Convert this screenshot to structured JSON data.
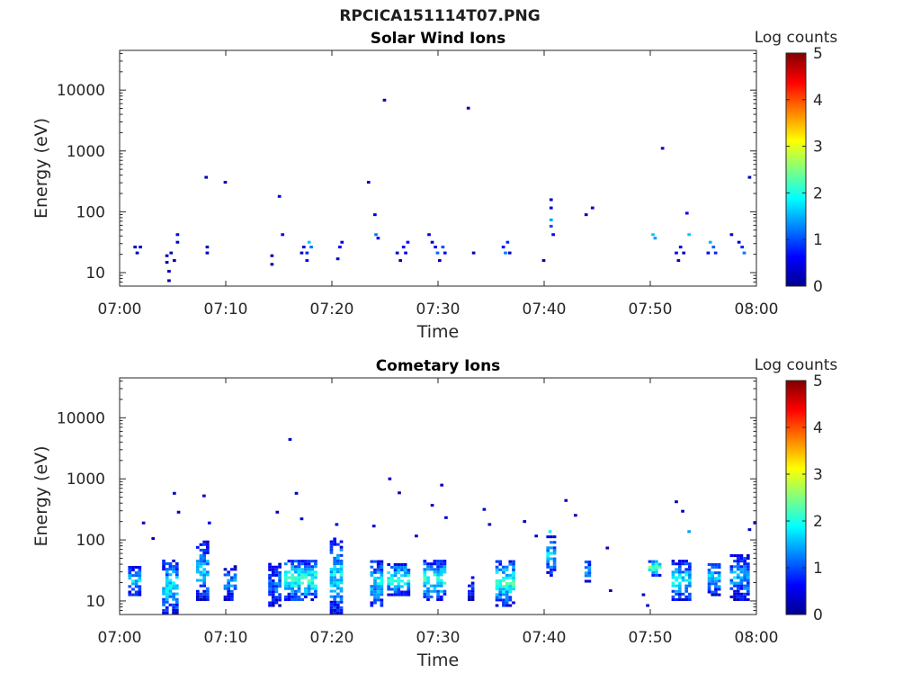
{
  "figure": {
    "title": "RPCICA151114T07.PNG",
    "colorbar_label": "Log counts"
  },
  "colormap": {
    "name": "jet",
    "range": [
      0,
      5
    ],
    "stops": [
      "#00008f",
      "#0000ff",
      "#0080ff",
      "#00ffff",
      "#80ff80",
      "#ffff00",
      "#ff8000",
      "#ff0000",
      "#800000"
    ]
  },
  "chart_data": [
    {
      "type": "heatmap",
      "title": "Solar Wind Ions",
      "xlabel": "Time",
      "ylabel": "Energy (eV)",
      "xlim": [
        "07:00",
        "08:00"
      ],
      "ylim": [
        6,
        45000
      ],
      "yscale": "log",
      "xticks": [
        "07:00",
        "07:10",
        "07:20",
        "07:30",
        "07:40",
        "07:50",
        "08:00"
      ],
      "yticks": [
        "10",
        "100",
        "1000",
        "10000"
      ],
      "colorbar": {
        "label": "Log counts",
        "ticks": [
          "0",
          "1",
          "2",
          "3",
          "4",
          "5"
        ]
      },
      "cells": [
        {
          "t": 1.3,
          "e": 25,
          "v": 0.3
        },
        {
          "t": 1.5,
          "e": 20,
          "v": 0.2
        },
        {
          "t": 1.8,
          "e": 25,
          "v": 0.3
        },
        {
          "t": 4.3,
          "e": 18,
          "v": 0.2
        },
        {
          "t": 4.3,
          "e": 14,
          "v": 0.1
        },
        {
          "t": 4.5,
          "e": 10,
          "v": 0.1
        },
        {
          "t": 4.5,
          "e": 7,
          "v": 0.1
        },
        {
          "t": 4.7,
          "e": 20,
          "v": 0.2
        },
        {
          "t": 5.0,
          "e": 15,
          "v": 0.2
        },
        {
          "t": 5.3,
          "e": 40,
          "v": 0.4
        },
        {
          "t": 5.3,
          "e": 30,
          "v": 0.3
        },
        {
          "t": 8.0,
          "e": 350,
          "v": 0.2
        },
        {
          "t": 8.1,
          "e": 25,
          "v": 0.3
        },
        {
          "t": 8.1,
          "e": 20,
          "v": 0.2
        },
        {
          "t": 9.8,
          "e": 290,
          "v": 0.2
        },
        {
          "t": 14.2,
          "e": 18,
          "v": 0.2
        },
        {
          "t": 14.2,
          "e": 13,
          "v": 0.2
        },
        {
          "t": 14.9,
          "e": 170,
          "v": 0.4
        },
        {
          "t": 15.2,
          "e": 40,
          "v": 0.6
        },
        {
          "t": 17.0,
          "e": 20,
          "v": 0.2
        },
        {
          "t": 17.2,
          "e": 25,
          "v": 0.5
        },
        {
          "t": 17.5,
          "e": 20,
          "v": 0.8
        },
        {
          "t": 17.7,
          "e": 30,
          "v": 1.6
        },
        {
          "t": 17.9,
          "e": 25,
          "v": 1.2
        },
        {
          "t": 17.5,
          "e": 15,
          "v": 0.6
        },
        {
          "t": 20.4,
          "e": 16,
          "v": 0.3
        },
        {
          "t": 20.6,
          "e": 25,
          "v": 0.5
        },
        {
          "t": 20.8,
          "e": 30,
          "v": 0.4
        },
        {
          "t": 23.3,
          "e": 290,
          "v": 0.2
        },
        {
          "t": 23.9,
          "e": 85,
          "v": 0.5
        },
        {
          "t": 24.0,
          "e": 40,
          "v": 1.2
        },
        {
          "t": 24.2,
          "e": 35,
          "v": 0.5
        },
        {
          "t": 24.8,
          "e": 6500,
          "v": 0.2
        },
        {
          "t": 26.0,
          "e": 20,
          "v": 0.3
        },
        {
          "t": 26.3,
          "e": 15,
          "v": 0.3
        },
        {
          "t": 26.6,
          "e": 25,
          "v": 0.6
        },
        {
          "t": 26.8,
          "e": 20,
          "v": 0.4
        },
        {
          "t": 27.0,
          "e": 30,
          "v": 0.6
        },
        {
          "t": 29.0,
          "e": 40,
          "v": 0.4
        },
        {
          "t": 29.3,
          "e": 30,
          "v": 0.3
        },
        {
          "t": 29.6,
          "e": 25,
          "v": 0.5
        },
        {
          "t": 29.8,
          "e": 20,
          "v": 1.1
        },
        {
          "t": 30.0,
          "e": 15,
          "v": 0.2
        },
        {
          "t": 30.3,
          "e": 25,
          "v": 1.0
        },
        {
          "t": 30.5,
          "e": 20,
          "v": 0.6
        },
        {
          "t": 32.7,
          "e": 4800,
          "v": 0.2
        },
        {
          "t": 33.2,
          "e": 20,
          "v": 0.2
        },
        {
          "t": 36.0,
          "e": 25,
          "v": 0.6
        },
        {
          "t": 36.2,
          "e": 20,
          "v": 1.2
        },
        {
          "t": 36.4,
          "e": 30,
          "v": 0.8
        },
        {
          "t": 36.6,
          "e": 20,
          "v": 0.3
        },
        {
          "t": 39.8,
          "e": 15,
          "v": 0.2
        },
        {
          "t": 40.5,
          "e": 150,
          "v": 0.3
        },
        {
          "t": 40.5,
          "e": 110,
          "v": 0.4
        },
        {
          "t": 40.5,
          "e": 70,
          "v": 1.4
        },
        {
          "t": 40.5,
          "e": 55,
          "v": 1.0
        },
        {
          "t": 40.7,
          "e": 40,
          "v": 0.6
        },
        {
          "t": 43.8,
          "e": 85,
          "v": 0.3
        },
        {
          "t": 44.4,
          "e": 110,
          "v": 0.3
        },
        {
          "t": 50.1,
          "e": 40,
          "v": 1.6
        },
        {
          "t": 50.3,
          "e": 35,
          "v": 1.4
        },
        {
          "t": 51.0,
          "e": 1050,
          "v": 0.3
        },
        {
          "t": 52.3,
          "e": 20,
          "v": 0.6
        },
        {
          "t": 52.5,
          "e": 15,
          "v": 0.4
        },
        {
          "t": 52.7,
          "e": 25,
          "v": 0.5
        },
        {
          "t": 53.0,
          "e": 20,
          "v": 0.3
        },
        {
          "t": 53.3,
          "e": 90,
          "v": 0.6
        },
        {
          "t": 53.5,
          "e": 40,
          "v": 1.6
        },
        {
          "t": 55.3,
          "e": 20,
          "v": 0.6
        },
        {
          "t": 55.5,
          "e": 30,
          "v": 1.5
        },
        {
          "t": 55.8,
          "e": 25,
          "v": 1.1
        },
        {
          "t": 56.0,
          "e": 20,
          "v": 0.8
        },
        {
          "t": 57.5,
          "e": 40,
          "v": 0.3
        },
        {
          "t": 58.2,
          "e": 30,
          "v": 0.4
        },
        {
          "t": 58.5,
          "e": 25,
          "v": 0.8
        },
        {
          "t": 58.7,
          "e": 20,
          "v": 1.2
        },
        {
          "t": 59.2,
          "e": 350,
          "v": 0.2
        }
      ]
    },
    {
      "type": "heatmap",
      "title": "Cometary Ions",
      "xlabel": "Time",
      "ylabel": "Energy (eV)",
      "xlim": [
        "07:00",
        "08:00"
      ],
      "ylim": [
        6,
        45000
      ],
      "yscale": "log",
      "xticks": [
        "07:00",
        "07:10",
        "07:20",
        "07:30",
        "07:40",
        "07:50",
        "08:00"
      ],
      "yticks": [
        "10",
        "100",
        "1000",
        "10000"
      ],
      "colorbar": {
        "label": "Log counts",
        "ticks": [
          "0",
          "1",
          "2",
          "3",
          "4",
          "5"
        ]
      },
      "clusters": [
        {
          "t0": 0.8,
          "t1": 2.0,
          "emin": 12,
          "emax": 35,
          "v": 1.6
        },
        {
          "t0": 4.0,
          "t1": 5.5,
          "emin": 6,
          "emax": 45,
          "v": 1.8
        },
        {
          "t0": 7.2,
          "t1": 8.6,
          "emin": 10,
          "emax": 90,
          "v": 1.6
        },
        {
          "t0": 9.8,
          "t1": 11.0,
          "emin": 10,
          "emax": 35,
          "v": 1.4
        },
        {
          "t0": 14.0,
          "t1": 15.2,
          "emin": 8,
          "emax": 40,
          "v": 1.2
        },
        {
          "t0": 15.5,
          "t1": 18.5,
          "emin": 10,
          "emax": 45,
          "v": 2.2
        },
        {
          "t0": 19.8,
          "t1": 21.2,
          "emin": 6,
          "emax": 100,
          "v": 1.8
        },
        {
          "t0": 23.6,
          "t1": 24.8,
          "emin": 8,
          "emax": 45,
          "v": 1.8
        },
        {
          "t0": 25.2,
          "t1": 27.3,
          "emin": 12,
          "emax": 40,
          "v": 2.0
        },
        {
          "t0": 28.6,
          "t1": 30.8,
          "emin": 10,
          "emax": 45,
          "v": 2.1
        },
        {
          "t0": 32.8,
          "t1": 33.5,
          "emin": 10,
          "emax": 25,
          "v": 1.0
        },
        {
          "t0": 35.4,
          "t1": 37.2,
          "emin": 8,
          "emax": 45,
          "v": 2.1
        },
        {
          "t0": 40.2,
          "t1": 41.0,
          "emin": 25,
          "emax": 110,
          "v": 1.6
        },
        {
          "t0": 43.8,
          "t1": 44.5,
          "emin": 20,
          "emax": 45,
          "v": 1.5
        },
        {
          "t0": 49.8,
          "t1": 51.0,
          "emin": 25,
          "emax": 45,
          "v": 2.4
        },
        {
          "t0": 52.0,
          "t1": 54.0,
          "emin": 10,
          "emax": 45,
          "v": 1.8
        },
        {
          "t0": 55.4,
          "t1": 56.5,
          "emin": 12,
          "emax": 40,
          "v": 1.7
        },
        {
          "t0": 57.5,
          "t1": 59.5,
          "emin": 10,
          "emax": 55,
          "v": 1.5
        }
      ],
      "sparse_points": [
        {
          "t": 2.1,
          "e": 180,
          "v": 0.3
        },
        {
          "t": 3.0,
          "e": 100,
          "v": 0.3
        },
        {
          "t": 5.0,
          "e": 550,
          "v": 0.3
        },
        {
          "t": 5.4,
          "e": 270,
          "v": 0.3
        },
        {
          "t": 7.8,
          "e": 500,
          "v": 0.4
        },
        {
          "t": 8.3,
          "e": 180,
          "v": 0.4
        },
        {
          "t": 14.7,
          "e": 270,
          "v": 0.3
        },
        {
          "t": 15.9,
          "e": 4200,
          "v": 0.3
        },
        {
          "t": 16.5,
          "e": 550,
          "v": 0.3
        },
        {
          "t": 17.0,
          "e": 210,
          "v": 0.3
        },
        {
          "t": 20.3,
          "e": 170,
          "v": 0.4
        },
        {
          "t": 23.8,
          "e": 160,
          "v": 0.3
        },
        {
          "t": 25.3,
          "e": 950,
          "v": 0.3
        },
        {
          "t": 26.2,
          "e": 560,
          "v": 0.3
        },
        {
          "t": 27.8,
          "e": 110,
          "v": 0.3
        },
        {
          "t": 29.3,
          "e": 350,
          "v": 0.3
        },
        {
          "t": 30.2,
          "e": 750,
          "v": 0.3
        },
        {
          "t": 30.6,
          "e": 220,
          "v": 0.4
        },
        {
          "t": 34.2,
          "e": 300,
          "v": 0.3
        },
        {
          "t": 34.7,
          "e": 170,
          "v": 0.3
        },
        {
          "t": 38.0,
          "e": 190,
          "v": 0.3
        },
        {
          "t": 39.1,
          "e": 110,
          "v": 0.3
        },
        {
          "t": 40.4,
          "e": 130,
          "v": 1.8
        },
        {
          "t": 41.9,
          "e": 420,
          "v": 0.3
        },
        {
          "t": 42.8,
          "e": 240,
          "v": 0.3
        },
        {
          "t": 45.8,
          "e": 70,
          "v": 0.3
        },
        {
          "t": 46.1,
          "e": 14,
          "v": 0.3
        },
        {
          "t": 49.2,
          "e": 12,
          "v": 0.3
        },
        {
          "t": 49.6,
          "e": 8,
          "v": 0.3
        },
        {
          "t": 52.3,
          "e": 400,
          "v": 0.3
        },
        {
          "t": 52.9,
          "e": 280,
          "v": 0.4
        },
        {
          "t": 53.5,
          "e": 130,
          "v": 1.4
        },
        {
          "t": 59.7,
          "e": 180,
          "v": 0.3
        },
        {
          "t": 59.2,
          "e": 140,
          "v": 0.3
        }
      ]
    }
  ]
}
